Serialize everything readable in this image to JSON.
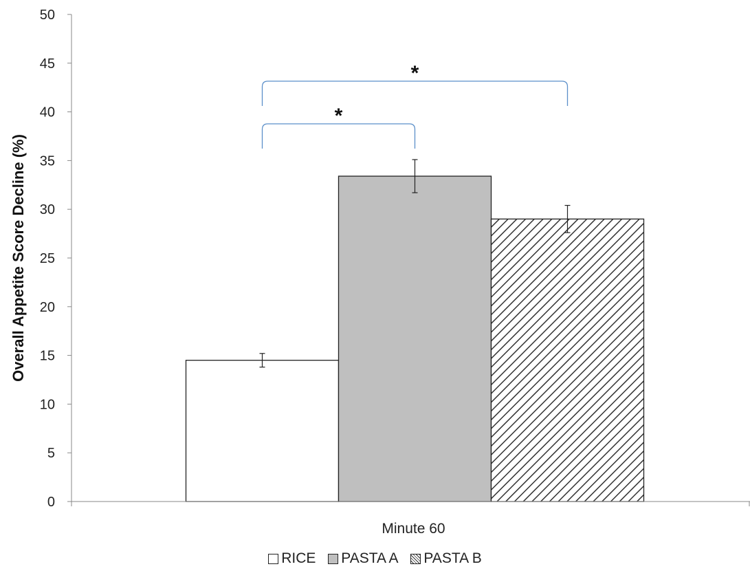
{
  "chart_data": {
    "type": "bar",
    "categories": [
      "Minute 60"
    ],
    "series": [
      {
        "name": "RICE",
        "values": [
          14.5
        ],
        "error": [
          0.7
        ],
        "fill": "#ffffff",
        "pattern": "none"
      },
      {
        "name": "PASTA A",
        "values": [
          33.4
        ],
        "error": [
          1.7
        ],
        "fill": "#bfbfbf",
        "pattern": "none"
      },
      {
        "name": "PASTA B",
        "values": [
          29.0
        ],
        "error": [
          1.4
        ],
        "fill": "#ffffff",
        "pattern": "diagonal-hatch"
      }
    ],
    "ylabel": "Overall Appetite Score Decline (%)",
    "xlabel": "",
    "ylim": [
      0,
      50
    ],
    "yticks": [
      "0",
      "5",
      "10",
      "15",
      "20",
      "25",
      "30",
      "35",
      "40",
      "45",
      "50"
    ],
    "grid": false,
    "legend_position": "bottom-center",
    "significance": [
      {
        "between": [
          "RICE",
          "PASTA A"
        ],
        "label": "*"
      },
      {
        "between": [
          "RICE",
          "PASTA B"
        ],
        "label": "*"
      }
    ],
    "bracket_color": "#5b8fc9"
  }
}
